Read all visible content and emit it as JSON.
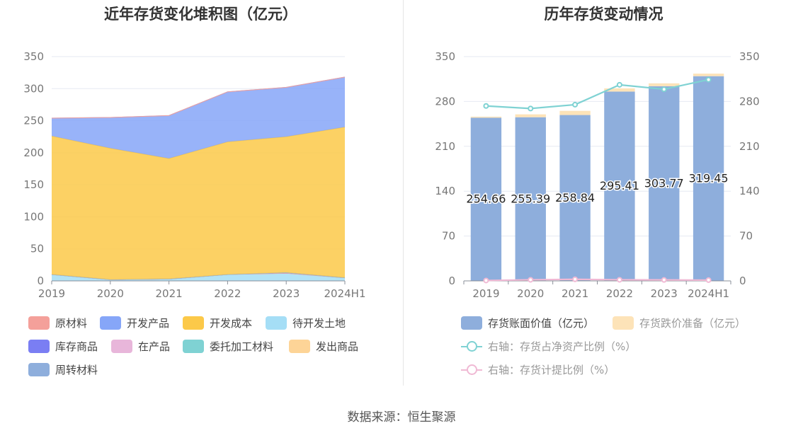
{
  "source": "数据来源：恒生聚源",
  "chart_data": [
    {
      "type": "area",
      "stacked": true,
      "title": "近年存货变化堆积图（亿元）",
      "categories": [
        "2019",
        "2020",
        "2021",
        "2022",
        "2023",
        "2024H1"
      ],
      "ylim": [
        0,
        350
      ],
      "yticks": [
        0,
        50,
        100,
        150,
        200,
        250,
        300,
        350
      ],
      "grid": true,
      "legend_position": "bottom",
      "series": [
        {
          "name": "原材料",
          "color": "#f4a09a",
          "values": [
            0,
            0,
            0,
            0,
            0,
            0
          ]
        },
        {
          "name": "开发产品",
          "color": "#86a6f8",
          "values": [
            28,
            48,
            67,
            78,
            77,
            78
          ]
        },
        {
          "name": "开发成本",
          "color": "#fcc949",
          "values": [
            216,
            205,
            188,
            207,
            212,
            235
          ]
        },
        {
          "name": "待开发土地",
          "color": "#a5def6",
          "values": [
            10,
            2,
            3,
            10,
            12,
            5
          ]
        },
        {
          "name": "库存商品",
          "color": "#7a7ef3",
          "values": [
            0,
            0,
            0,
            0,
            1,
            0
          ]
        },
        {
          "name": "在产品",
          "color": "#e8b6da",
          "values": [
            0,
            0,
            0,
            0,
            0,
            0
          ]
        },
        {
          "name": "委托加工材料",
          "color": "#7fd2d3",
          "values": [
            0,
            0,
            0,
            0,
            0,
            0
          ]
        },
        {
          "name": "发出商品",
          "color": "#fdd497",
          "values": [
            0,
            0,
            0,
            0,
            0,
            0
          ]
        },
        {
          "name": "周转材料",
          "color": "#8eaedc",
          "values": [
            0,
            0,
            0,
            0,
            0,
            0
          ]
        }
      ]
    },
    {
      "type": "bar",
      "stacked": true,
      "title": "历年存货变动情况",
      "categories": [
        "2019",
        "2020",
        "2021",
        "2022",
        "2023",
        "2024H1"
      ],
      "ylim": [
        0,
        350
      ],
      "yticks": [
        0,
        70,
        140,
        210,
        280,
        350
      ],
      "y2lim": [
        0,
        350
      ],
      "y2ticks": [
        0,
        70,
        140,
        210,
        280,
        350
      ],
      "grid": true,
      "legend_position": "bottom",
      "series": [
        {
          "name": "存货账面价值（亿元）",
          "kind": "bar",
          "color": "#8eaedc",
          "values": [
            254.66,
            255.39,
            258.84,
            295.41,
            303.77,
            319.45
          ],
          "labels": [
            "254.66",
            "255.39",
            "258.84",
            "295.41",
            "303.77",
            "319.45"
          ]
        },
        {
          "name": "存货跌价准备（亿元）",
          "kind": "bar",
          "color": "#fde3b8",
          "values": [
            1.6,
            4.5,
            6.5,
            5.0,
            4.5,
            4.0
          ]
        },
        {
          "name": "右轴：存货占净资产比例（%）",
          "kind": "line",
          "axis": "right",
          "color": "#7fd2d3",
          "values": [
            273,
            269,
            275,
            306,
            299,
            314
          ]
        },
        {
          "name": "右轴：存货计提比例（%）",
          "kind": "line",
          "axis": "right",
          "color": "#f0b9d4",
          "values": [
            0.6,
            1.7,
            2.5,
            1.7,
            1.5,
            1.2
          ]
        }
      ]
    }
  ]
}
